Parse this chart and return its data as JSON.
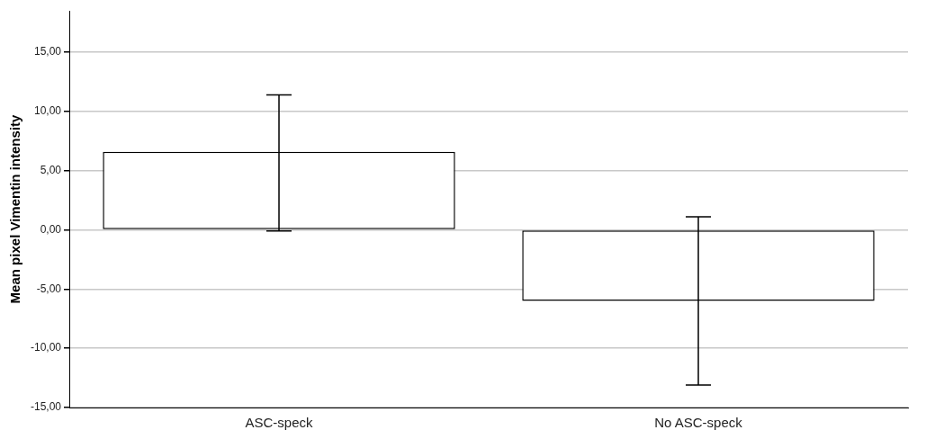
{
  "chart_data": {
    "type": "bar",
    "ylabel": "Mean pixel Vimentin intensity",
    "categories": [
      "ASC-speck",
      "No ASC-speck"
    ],
    "values": [
      6.6,
      -6.0
    ],
    "color": "#ffffff",
    "errors": [
      [
        -0.1,
        11.4
      ],
      [
        -13.1,
        1.1
      ]
    ],
    "ylim": [
      -15,
      18.5
    ],
    "yticks": [
      {
        "value": -15,
        "label": "-15,00"
      },
      {
        "value": -10,
        "label": "-10,00"
      },
      {
        "value": -5,
        "label": "-5,00"
      },
      {
        "value": 0,
        "label": "0,00"
      },
      {
        "value": 5,
        "label": "5,00"
      },
      {
        "value": 10,
        "label": "10,00"
      },
      {
        "value": 15,
        "label": "15,00"
      }
    ],
    "grid": "y"
  }
}
